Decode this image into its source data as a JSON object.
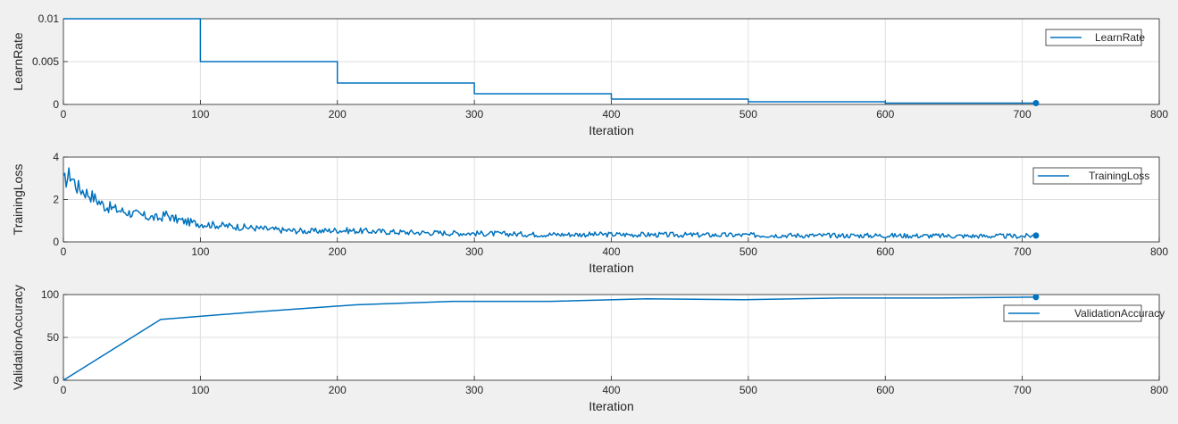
{
  "chart_data": [
    {
      "type": "line",
      "ylabel": "LearnRate",
      "xlabel": "Iteration",
      "xlim": [
        0,
        800
      ],
      "ylim": [
        0,
        0.01
      ],
      "xticks": [
        "0",
        "100",
        "200",
        "300",
        "400",
        "500",
        "600",
        "700",
        "800"
      ],
      "yticks": [
        "0",
        "0.005",
        "0.01"
      ],
      "yticks_values": [
        0,
        0.005,
        0.01
      ],
      "grid": true,
      "legend_placement": "top-right",
      "series": [
        {
          "name": "LearnRate",
          "color": "#0072bd",
          "style": "step",
          "x": [
            0,
            100,
            200,
            300,
            400,
            500,
            600,
            710
          ],
          "y": [
            0.01,
            0.005,
            0.0025,
            0.00125,
            0.000625,
            0.0003125,
            0.00015625,
            0.00015625
          ],
          "end_marker": true
        }
      ]
    },
    {
      "type": "line",
      "ylabel": "TrainingLoss",
      "xlabel": "Iteration",
      "xlim": [
        0,
        800
      ],
      "ylim": [
        0,
        4
      ],
      "xticks": [
        "0",
        "100",
        "200",
        "300",
        "400",
        "500",
        "600",
        "700",
        "800"
      ],
      "yticks": [
        "0",
        "2",
        "4"
      ],
      "yticks_values": [
        0,
        2,
        4
      ],
      "grid": true,
      "legend_placement": "top-right",
      "series": [
        {
          "name": "TrainingLoss",
          "color": "#0072bd",
          "style": "noisy",
          "x": [
            0,
            5,
            10,
            20,
            30,
            40,
            50,
            60,
            70,
            75,
            80,
            90,
            100,
            120,
            140,
            160,
            180,
            200,
            250,
            300,
            350,
            400,
            450,
            500,
            550,
            600,
            650,
            700,
            710
          ],
          "y": [
            2.8,
            3.2,
            2.6,
            2.2,
            1.7,
            1.5,
            1.35,
            1.2,
            1.1,
            1.3,
            1.1,
            0.95,
            0.85,
            0.75,
            0.65,
            0.55,
            0.5,
            0.55,
            0.45,
            0.4,
            0.35,
            0.35,
            0.33,
            0.32,
            0.3,
            0.3,
            0.28,
            0.27,
            0.3
          ],
          "end_marker": true
        }
      ]
    },
    {
      "type": "line",
      "ylabel": "ValidationAccuracy",
      "xlabel": "Iteration",
      "xlim": [
        0,
        800
      ],
      "ylim": [
        0,
        100
      ],
      "xticks": [
        "0",
        "100",
        "200",
        "300",
        "400",
        "500",
        "600",
        "700",
        "800"
      ],
      "yticks": [
        "0",
        "50",
        "100"
      ],
      "yticks_values": [
        0,
        50,
        100
      ],
      "grid": true,
      "legend_placement": "top-right",
      "series": [
        {
          "name": "ValidationAccuracy",
          "color": "#0072bd",
          "style": "line",
          "x": [
            0,
            71,
            142,
            213,
            284,
            355,
            426,
            497,
            568,
            639,
            710
          ],
          "y": [
            0,
            71,
            80,
            88,
            92,
            92,
            95,
            94,
            96,
            96,
            97
          ],
          "end_marker": true
        }
      ]
    }
  ]
}
